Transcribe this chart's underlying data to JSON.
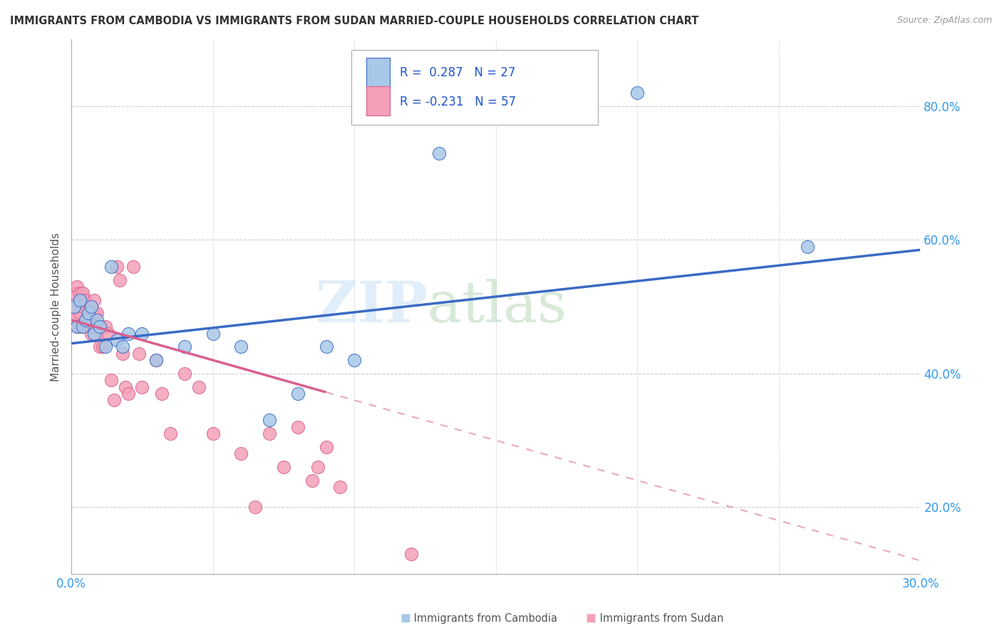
{
  "title": "IMMIGRANTS FROM CAMBODIA VS IMMIGRANTS FROM SUDAN MARRIED-COUPLE HOUSEHOLDS CORRELATION CHART",
  "source": "Source: ZipAtlas.com",
  "xlabel_cambodia": "Immigrants from Cambodia",
  "xlabel_sudan": "Immigrants from Sudan",
  "ylabel": "Married-couple Households",
  "xlim": [
    0.0,
    0.3
  ],
  "ylim": [
    0.1,
    0.9
  ],
  "xticks": [
    0.0,
    0.05,
    0.1,
    0.15,
    0.2,
    0.25,
    0.3
  ],
  "yticks": [
    0.2,
    0.4,
    0.6,
    0.8
  ],
  "ytick_labels": [
    "20.0%",
    "40.0%",
    "60.0%",
    "80.0%"
  ],
  "xtick_labels": [
    "0.0%",
    "",
    "",
    "",
    "",
    "",
    "30.0%"
  ],
  "r_cambodia": 0.287,
  "n_cambodia": 27,
  "r_sudan": -0.231,
  "n_sudan": 57,
  "color_cambodia": "#a8c8e8",
  "color_sudan": "#f4a0b8",
  "line_color_cambodia": "#3a6bc4",
  "line_color_sudan": "#d96090",
  "cambodia_x": [
    0.001,
    0.002,
    0.003,
    0.004,
    0.005,
    0.006,
    0.007,
    0.008,
    0.009,
    0.01,
    0.012,
    0.014,
    0.016,
    0.018,
    0.02,
    0.025,
    0.03,
    0.04,
    0.05,
    0.06,
    0.07,
    0.08,
    0.09,
    0.1,
    0.13,
    0.2,
    0.26
  ],
  "cambodia_y": [
    0.5,
    0.47,
    0.51,
    0.47,
    0.48,
    0.49,
    0.5,
    0.46,
    0.48,
    0.47,
    0.44,
    0.56,
    0.45,
    0.44,
    0.46,
    0.46,
    0.42,
    0.44,
    0.46,
    0.44,
    0.33,
    0.37,
    0.44,
    0.42,
    0.73,
    0.82,
    0.59
  ],
  "sudan_x": [
    0.001,
    0.001,
    0.002,
    0.002,
    0.002,
    0.003,
    0.003,
    0.003,
    0.004,
    0.004,
    0.004,
    0.005,
    0.005,
    0.005,
    0.006,
    0.006,
    0.006,
    0.007,
    0.007,
    0.007,
    0.007,
    0.008,
    0.008,
    0.008,
    0.009,
    0.009,
    0.01,
    0.01,
    0.011,
    0.012,
    0.013,
    0.014,
    0.015,
    0.016,
    0.017,
    0.018,
    0.019,
    0.02,
    0.022,
    0.024,
    0.025,
    0.03,
    0.032,
    0.035,
    0.04,
    0.045,
    0.05,
    0.06,
    0.065,
    0.07,
    0.075,
    0.08,
    0.085,
    0.087,
    0.09,
    0.095,
    0.12
  ],
  "sudan_y": [
    0.48,
    0.52,
    0.47,
    0.5,
    0.53,
    0.47,
    0.49,
    0.52,
    0.47,
    0.5,
    0.52,
    0.48,
    0.47,
    0.51,
    0.49,
    0.47,
    0.48,
    0.5,
    0.48,
    0.47,
    0.46,
    0.49,
    0.47,
    0.51,
    0.46,
    0.49,
    0.47,
    0.44,
    0.44,
    0.47,
    0.46,
    0.39,
    0.36,
    0.56,
    0.54,
    0.43,
    0.38,
    0.37,
    0.56,
    0.43,
    0.38,
    0.42,
    0.37,
    0.31,
    0.4,
    0.38,
    0.31,
    0.28,
    0.2,
    0.31,
    0.26,
    0.32,
    0.24,
    0.26,
    0.29,
    0.23,
    0.13
  ],
  "line_cam_x0": 0.0,
  "line_cam_x1": 0.3,
  "line_cam_y0": 0.445,
  "line_cam_y1": 0.585,
  "line_sud_x0": 0.0,
  "line_sud_solid_x1": 0.09,
  "line_sud_x1": 0.3,
  "line_sud_y0": 0.48,
  "line_sud_y1": 0.12
}
